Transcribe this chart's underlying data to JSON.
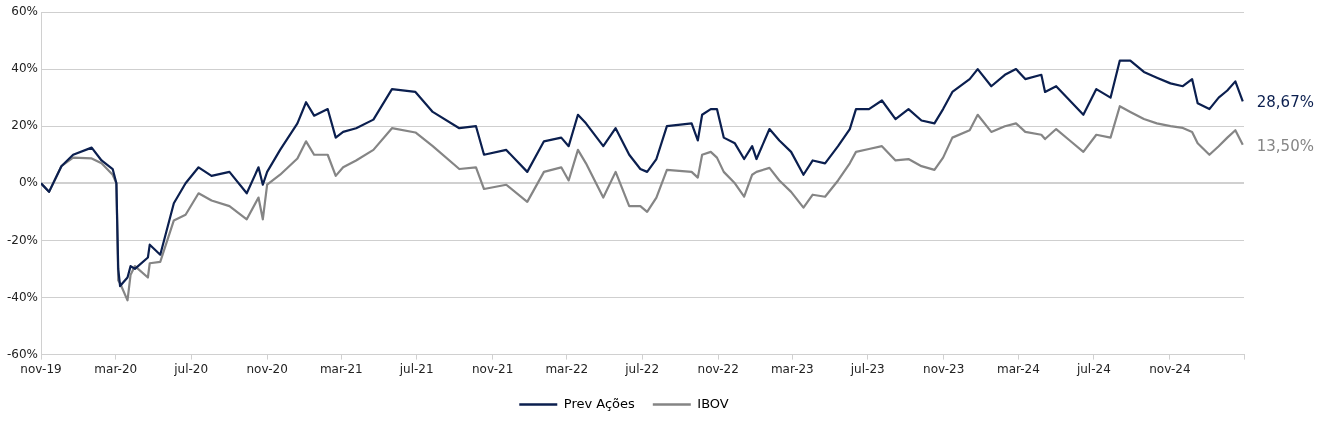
{
  "chart_data": {
    "type": "line",
    "x": [
      "2019-11-01",
      "2019-11-14",
      "2019-12-04",
      "2019-12-23",
      "2020-01-22",
      "2020-02-07",
      "2020-02-25",
      "2020-03-02",
      "2020-03-05",
      "2020-03-08",
      "2020-03-20",
      "2020-03-25",
      "2020-04-01",
      "2020-04-22",
      "2020-04-25",
      "2020-05-12",
      "2020-06-03",
      "2020-06-22",
      "2020-07-13",
      "2020-08-03",
      "2020-09-01",
      "2020-09-29",
      "2020-10-18",
      "2020-10-25",
      "2020-11-01",
      "2020-11-22",
      "2020-12-20",
      "2021-01-03",
      "2021-01-16",
      "2021-02-07",
      "2021-02-20",
      "2021-03-04",
      "2021-03-25",
      "2021-04-22",
      "2021-05-22",
      "2021-06-29",
      "2021-07-27",
      "2021-09-08",
      "2021-10-05",
      "2021-10-18",
      "2021-11-23",
      "2021-12-27",
      "2022-01-23",
      "2022-02-20",
      "2022-03-04",
      "2022-03-19",
      "2022-04-01",
      "2022-04-29",
      "2022-05-19",
      "2022-06-10",
      "2022-06-28",
      "2022-07-09",
      "2022-07-24",
      "2022-08-10",
      "2022-09-19",
      "2022-09-29",
      "2022-10-06",
      "2022-10-20",
      "2022-10-30",
      "2022-11-10",
      "2022-11-28",
      "2022-12-13",
      "2022-12-26",
      "2023-01-02",
      "2023-01-23",
      "2023-02-08",
      "2023-02-27",
      "2023-03-19",
      "2023-04-03",
      "2023-04-23",
      "2023-05-14",
      "2023-06-02",
      "2023-06-12",
      "2023-07-03",
      "2023-07-24",
      "2023-08-15",
      "2023-09-05",
      "2023-09-26",
      "2023-10-17",
      "2023-10-31",
      "2023-11-15",
      "2023-12-13",
      "2023-12-26",
      "2024-01-17",
      "2024-02-08",
      "2024-02-26",
      "2024-03-12",
      "2024-04-07",
      "2024-04-13",
      "2024-05-01",
      "2024-05-23",
      "2024-06-14",
      "2024-07-05",
      "2024-07-28",
      "2024-08-12",
      "2024-08-29",
      "2024-09-20",
      "2024-10-11",
      "2024-11-02",
      "2024-11-22",
      "2024-12-07",
      "2024-12-16",
      "2025-01-04",
      "2025-01-19",
      "2025-02-02",
      "2025-02-15",
      "2025-02-27"
    ],
    "series": [
      {
        "name": "Prev Ações",
        "color": "#0b1f4f",
        "values": [
          0,
          -3,
          6,
          10,
          12.5,
          8,
          5,
          0,
          -30,
          -36,
          -33,
          -29,
          -30,
          -26,
          -21.5,
          -25,
          -7,
          0,
          5.6,
          2.6,
          4,
          -3.5,
          5.6,
          -0.5,
          4,
          11.7,
          21,
          28.4,
          23.7,
          26,
          16,
          18,
          19.3,
          22.3,
          33,
          32,
          25,
          19.3,
          20,
          10,
          11.7,
          4,
          14.7,
          16,
          13,
          24,
          21,
          13,
          19.3,
          10,
          5,
          4,
          8.5,
          20,
          21,
          15,
          24,
          26,
          26,
          16,
          14,
          8.5,
          13,
          8.5,
          19,
          15,
          11,
          3,
          8,
          7,
          13,
          19,
          26,
          26,
          29,
          22.5,
          26,
          22,
          21,
          26,
          32,
          36.5,
          40,
          34,
          38,
          40,
          36.5,
          38,
          32,
          34,
          29,
          24,
          33,
          30,
          43,
          43,
          39,
          37,
          35,
          34,
          36.5,
          28,
          26,
          30,
          32.5,
          35.7,
          28.67
        ]
      },
      {
        "name": "IBOV",
        "color": "#858585",
        "values": [
          0,
          -3,
          6,
          9,
          8.7,
          7,
          3,
          0,
          -34,
          -35,
          -41,
          -32,
          -29,
          -33,
          -28,
          -27.5,
          -13,
          -11,
          -3.5,
          -6,
          -8,
          -12.6,
          -5,
          -12.6,
          -0.5,
          3,
          8.7,
          14.7,
          10,
          10,
          2.6,
          5.6,
          8,
          11.7,
          19.3,
          17.8,
          13,
          5,
          5.6,
          -2,
          -0.5,
          -6.5,
          4,
          5.6,
          1,
          11.7,
          7,
          -5,
          4,
          -8,
          -8,
          -10,
          -5,
          4.7,
          4,
          2,
          10,
          11,
          9,
          4,
          0,
          -4.7,
          3,
          4,
          5.4,
          1,
          -3,
          -8.5,
          -4,
          -4.7,
          1,
          7,
          11,
          12,
          13,
          8,
          8.5,
          6,
          4.7,
          9,
          16,
          18.6,
          24,
          18,
          20,
          21,
          18,
          17,
          15.5,
          19,
          15,
          11,
          17,
          16,
          27,
          25,
          22.5,
          21,
          20,
          19.4,
          18,
          14,
          10,
          13,
          16,
          18.6,
          13.5
        ]
      }
    ],
    "xlim": [
      "2019-11-01",
      "2025-03-01"
    ],
    "xticks": [
      {
        "value": "2019-11-01",
        "label": "nov-19"
      },
      {
        "value": "2020-03-01",
        "label": "mar-20"
      },
      {
        "value": "2020-07-01",
        "label": "jul-20"
      },
      {
        "value": "2020-11-01",
        "label": "nov-20"
      },
      {
        "value": "2021-03-01",
        "label": "mar-21"
      },
      {
        "value": "2021-07-01",
        "label": "jul-21"
      },
      {
        "value": "2021-11-01",
        "label": "nov-21"
      },
      {
        "value": "2022-03-01",
        "label": "mar-22"
      },
      {
        "value": "2022-07-01",
        "label": "jul-22"
      },
      {
        "value": "2022-11-01",
        "label": "nov-22"
      },
      {
        "value": "2023-03-01",
        "label": "mar-23"
      },
      {
        "value": "2023-07-01",
        "label": "jul-23"
      },
      {
        "value": "2023-11-01",
        "label": "nov-23"
      },
      {
        "value": "2024-03-01",
        "label": "mar-24"
      },
      {
        "value": "2024-07-01",
        "label": "jul-24"
      },
      {
        "value": "2024-11-01",
        "label": "nov-24"
      },
      {
        "value": "2025-03-01",
        "label": null
      }
    ],
    "ylim": [
      -60,
      60
    ],
    "yticks": [
      {
        "value": -60,
        "label": "-60%"
      },
      {
        "value": -40,
        "label": "-40%"
      },
      {
        "value": -20,
        "label": "-20%"
      },
      {
        "value": 0,
        "label": "0%"
      },
      {
        "value": 20,
        "label": "20%"
      },
      {
        "value": 40,
        "label": "40%"
      },
      {
        "value": 60,
        "label": "60%"
      }
    ],
    "annotations": [
      {
        "text": "28,67%",
        "x": "2025-02-27",
        "y": 28.67
      },
      {
        "text": "13,50%",
        "x": "2025-02-27",
        "y": 13.5
      }
    ],
    "grid": "y",
    "legend": "bottom",
    "marker": "none",
    "line_style": "solid"
  }
}
